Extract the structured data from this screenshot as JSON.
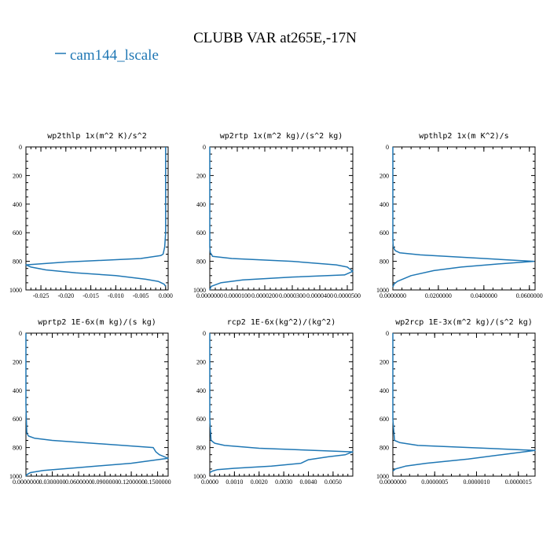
{
  "figure": {
    "title": "CLUBB VAR at265E,-17N",
    "legend": [
      {
        "label": "cam144_lscale",
        "color": "#1f77b4"
      }
    ]
  },
  "chart_data": [
    {
      "type": "line",
      "title": "wp2thlp  1x(m^2 K)/s^2",
      "xlim": [
        -0.028,
        0.0005
      ],
      "ylim": [
        1000,
        0
      ],
      "xticks": [
        -0.025,
        -0.02,
        -0.015,
        -0.01,
        -0.005,
        0.0
      ],
      "xtick_labels": [
        "-0.025",
        "-0.020",
        "-0.015",
        "-0.010",
        "-0.005",
        "0.000"
      ],
      "yticks": [
        0,
        200,
        400,
        600,
        800,
        1000
      ],
      "series": [
        {
          "name": "cam144_lscale",
          "x": [
            0.0,
            0.0,
            0.0,
            -0.0002,
            -0.0005,
            -0.001,
            -0.005,
            -0.02,
            -0.028,
            -0.027,
            -0.024,
            -0.018,
            -0.01,
            -0.004,
            -0.0015,
            -0.0003,
            0.0
          ],
          "y": [
            0,
            300,
            600,
            700,
            750,
            760,
            780,
            805,
            825,
            840,
            860,
            880,
            900,
            925,
            940,
            960,
            975
          ]
        }
      ]
    },
    {
      "type": "line",
      "title": "wp2rtp  1x(m^2 kg)/(s^2 kg)",
      "xlim": [
        0.0,
        5.2e-05
      ],
      "ylim": [
        1000,
        0
      ],
      "xticks": [
        0.0,
        1e-05,
        2e-05,
        3e-05,
        4e-05,
        5e-05
      ],
      "xtick_labels": [
        "0.0000000",
        "0.0000100",
        "0.0000200",
        "0.0000300",
        "0.0000400",
        "0.0000500"
      ],
      "yticks": [
        0,
        200,
        400,
        600,
        800,
        1000
      ],
      "series": [
        {
          "name": "cam144_lscale",
          "x": [
            0.0,
            0.0,
            0.0,
            2e-07,
            1e-06,
            8e-06,
            3e-05,
            4.6e-05,
            5e-05,
            5.2e-05,
            4.9e-05,
            3e-05,
            1.2e-05,
            4e-06,
            5e-07,
            0.0
          ],
          "y": [
            0,
            400,
            700,
            740,
            765,
            780,
            800,
            825,
            840,
            870,
            895,
            910,
            930,
            950,
            975,
            1000
          ]
        }
      ]
    },
    {
      "type": "line",
      "title": "wpthlp2  1x(m K^2)/s",
      "xlim": [
        0.0,
        0.0625
      ],
      "ylim": [
        1000,
        0
      ],
      "xticks": [
        0.0,
        0.02,
        0.04,
        0.06
      ],
      "xtick_labels": [
        "0.0000000",
        "0.0200000",
        "0.0400000",
        "0.0600000"
      ],
      "yticks": [
        0,
        200,
        400,
        600,
        800,
        1000
      ],
      "series": [
        {
          "name": "cam144_lscale",
          "x": [
            0.0,
            0.0,
            0.0002,
            0.001,
            0.003,
            0.012,
            0.062,
            0.045,
            0.03,
            0.018,
            0.008,
            0.002,
            0.0005,
            0.0
          ],
          "y": [
            0,
            650,
            700,
            725,
            740,
            755,
            800,
            820,
            840,
            865,
            900,
            940,
            960,
            980
          ]
        }
      ]
    },
    {
      "type": "line",
      "title": "wprtp2  1E-6x(m kg)/(s kg)",
      "xlim": [
        0.0,
        0.162
      ],
      "ylim": [
        1000,
        0
      ],
      "xticks": [
        0.0,
        0.03,
        0.06,
        0.09,
        0.12,
        0.15
      ],
      "xtick_labels": [
        "0.0000000",
        "0.0300000",
        "0.0600000",
        "0.0900000",
        "0.1200000",
        "0.1500000"
      ],
      "yticks": [
        0,
        200,
        400,
        600,
        800,
        1000
      ],
      "series": [
        {
          "name": "cam144_lscale",
          "x": [
            0.0,
            0.0,
            0.001,
            0.003,
            0.01,
            0.03,
            0.145,
            0.148,
            0.152,
            0.162,
            0.12,
            0.06,
            0.02,
            0.005,
            0.001,
            0.0
          ],
          "y": [
            0,
            500,
            700,
            720,
            735,
            750,
            800,
            830,
            850,
            875,
            910,
            940,
            960,
            975,
            990,
            1000
          ]
        }
      ]
    },
    {
      "type": "line",
      "title": "rcp2  1E-6x(kg^2)/(kg^2)",
      "xlim": [
        0.0,
        0.0058
      ],
      "ylim": [
        1000,
        0
      ],
      "xticks": [
        0.0,
        0.001,
        0.002,
        0.003,
        0.004,
        0.005
      ],
      "xtick_labels": [
        "0.0000",
        "0.0010",
        "0.0020",
        "0.0030",
        "0.0040",
        "0.0050"
      ],
      "yticks": [
        0,
        200,
        400,
        600,
        800,
        1000
      ],
      "series": [
        {
          "name": "cam144_lscale",
          "x": [
            0.0,
            0.0,
            5e-05,
            0.0002,
            0.0006,
            0.002,
            0.0058,
            0.0055,
            0.0048,
            0.004,
            0.0037,
            0.0025,
            0.001,
            0.0003,
            0.0001,
            0.0
          ],
          "y": [
            0,
            600,
            750,
            770,
            785,
            805,
            830,
            850,
            865,
            885,
            910,
            930,
            945,
            955,
            965,
            975
          ]
        }
      ]
    },
    {
      "type": "line",
      "title": "wp2rcp  1E-3x(m^2 kg)/(s^2 kg)",
      "xlim": [
        0.0,
        1.7e-06
      ],
      "ylim": [
        1000,
        0
      ],
      "xticks": [
        0.0,
        5e-07,
        1e-06,
        1.5e-06
      ],
      "xtick_labels": [
        "0.0000000",
        "0.0000005",
        "0.0000010",
        "0.0000015"
      ],
      "yticks": [
        0,
        200,
        400,
        600,
        800,
        1000
      ],
      "series": [
        {
          "name": "cam144_lscale",
          "x": [
            0.0,
            0.0,
            2e-08,
            8e-08,
            3e-07,
            1.7e-06,
            1.3e-06,
            9e-07,
            4e-07,
            1.5e-07,
            3e-08,
            0.0
          ],
          "y": [
            0,
            600,
            750,
            765,
            785,
            820,
            850,
            880,
            910,
            930,
            950,
            965
          ]
        }
      ]
    }
  ]
}
